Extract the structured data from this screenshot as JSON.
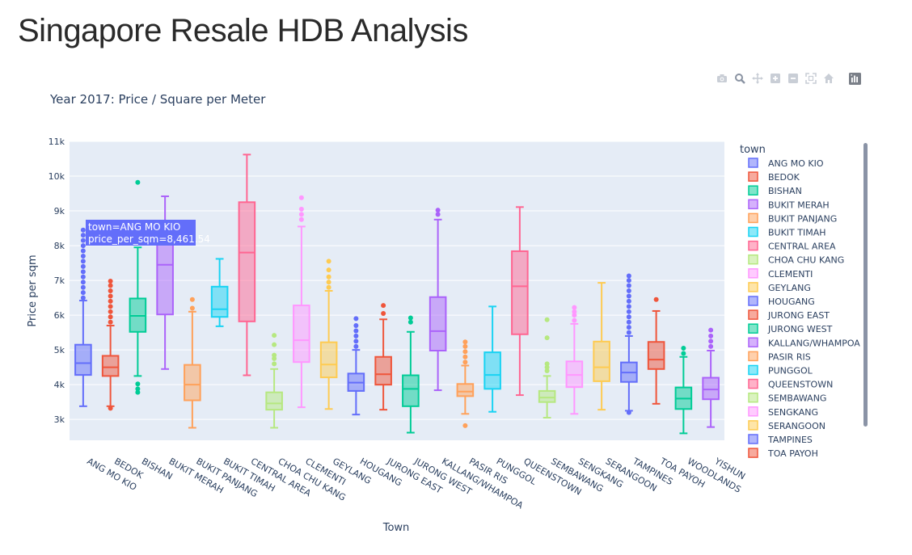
{
  "page": {
    "title": "Singapore Resale HDB Analysis"
  },
  "modebar": {
    "icons": [
      "camera-icon",
      "zoom-icon",
      "pan-icon",
      "zoom-in-icon",
      "zoom-out-icon",
      "autoscale-icon",
      "reset-axes-icon",
      "plotly-logo-icon"
    ]
  },
  "chart_data": {
    "type": "box",
    "title": "Year 2017: Price / Square per Meter",
    "xlabel": "Town",
    "ylabel": "Price per sqm",
    "ylim": [
      2400,
      11000
    ],
    "yticks": [
      3000,
      4000,
      5000,
      6000,
      7000,
      8000,
      9000,
      10000,
      11000
    ],
    "ytick_labels": [
      "3k",
      "4k",
      "5k",
      "6k",
      "7k",
      "8k",
      "9k",
      "10k",
      "11k"
    ],
    "grid": true,
    "legend_title": "town",
    "legend_position": "right",
    "hover": {
      "line1": "town=ANG MO KIO",
      "line2": "price_per_sqm=8,461.54"
    },
    "series": [
      {
        "name": "ANG MO KIO",
        "color": "#636efa",
        "min": 3380,
        "q1": 4280,
        "median": 4620,
        "q3": 5150,
        "max": 6420,
        "outliers": [
          6500,
          6650,
          6800,
          6950,
          7100,
          7250,
          7400,
          7550,
          7700,
          7850,
          8000,
          8150,
          8300,
          8450
        ]
      },
      {
        "name": "BEDOK",
        "color": "#ef553b",
        "min": 3380,
        "q1": 4250,
        "median": 4500,
        "q3": 4830,
        "max": 5700,
        "outliers": [
          3320,
          5800,
          5950,
          6100,
          6250,
          6400,
          6550,
          6700,
          6850,
          6980
        ]
      },
      {
        "name": "BISHAN",
        "color": "#00cc96",
        "min": 4250,
        "q1": 5520,
        "median": 5980,
        "q3": 6480,
        "max": 7950,
        "outliers": [
          3780,
          3880,
          4020,
          8100,
          8250,
          9820
        ]
      },
      {
        "name": "BUKIT MERAH",
        "color": "#ab63fa",
        "min": 4450,
        "q1": 6020,
        "median": 7450,
        "q3": 8400,
        "max": 9420,
        "outliers": []
      },
      {
        "name": "BUKIT PANJANG",
        "color": "#ffa15a",
        "min": 2760,
        "q1": 3550,
        "median": 4000,
        "q3": 4570,
        "max": 6100,
        "outliers": [
          6200,
          6450
        ]
      },
      {
        "name": "BUKIT TIMAH",
        "color": "#19d3f3",
        "min": 5680,
        "q1": 5950,
        "median": 6170,
        "q3": 6820,
        "max": 7620,
        "outliers": []
      },
      {
        "name": "CENTRAL AREA",
        "color": "#ff6692",
        "min": 4270,
        "q1": 5820,
        "median": 7800,
        "q3": 9250,
        "max": 10620,
        "outliers": []
      },
      {
        "name": "CHOA CHU KANG",
        "color": "#b6e880",
        "min": 2760,
        "q1": 3280,
        "median": 3460,
        "q3": 3780,
        "max": 4450,
        "outliers": [
          4600,
          4750,
          4850,
          5150,
          5420
        ]
      },
      {
        "name": "CLEMENTI",
        "color": "#ff97ff",
        "min": 3350,
        "q1": 4650,
        "median": 5280,
        "q3": 6280,
        "max": 8550,
        "outliers": [
          8750,
          8900,
          9050,
          9380
        ]
      },
      {
        "name": "GEYLANG",
        "color": "#fecb52",
        "min": 3300,
        "q1": 4210,
        "median": 4580,
        "q3": 5220,
        "max": 6700,
        "outliers": [
          6800,
          6950,
          7100,
          7300,
          7550
        ]
      },
      {
        "name": "HOUGANG",
        "color": "#636efa",
        "min": 3140,
        "q1": 3820,
        "median": 4060,
        "q3": 4320,
        "max": 5000,
        "outliers": [
          5100,
          5250,
          5400,
          5550,
          5700,
          5900
        ]
      },
      {
        "name": "JURONG EAST",
        "color": "#ef553b",
        "min": 3280,
        "q1": 4000,
        "median": 4300,
        "q3": 4800,
        "max": 5880,
        "outliers": [
          6050,
          6280
        ]
      },
      {
        "name": "JURONG WEST",
        "color": "#00cc96",
        "min": 2620,
        "q1": 3380,
        "median": 3880,
        "q3": 4270,
        "max": 5520,
        "outliers": [
          5800,
          5920
        ]
      },
      {
        "name": "KALLANG/WHAMPOA",
        "color": "#ab63fa",
        "min": 3840,
        "q1": 4980,
        "median": 5540,
        "q3": 6520,
        "max": 8750,
        "outliers": [
          8900,
          9020
        ]
      },
      {
        "name": "PASIR RIS",
        "color": "#ffa15a",
        "min": 3160,
        "q1": 3670,
        "median": 3800,
        "q3": 4020,
        "max": 4550,
        "outliers": [
          2820,
          4650,
          4800,
          4950,
          5100,
          5230
        ]
      },
      {
        "name": "PUNGGOL",
        "color": "#19d3f3",
        "min": 3220,
        "q1": 3880,
        "median": 4280,
        "q3": 4930,
        "max": 6250,
        "outliers": []
      },
      {
        "name": "QUEENSTOWN",
        "color": "#ff6692",
        "min": 3700,
        "q1": 5450,
        "median": 6830,
        "q3": 7840,
        "max": 9110,
        "outliers": []
      },
      {
        "name": "SEMBAWANG",
        "color": "#b6e880",
        "min": 3050,
        "q1": 3500,
        "median": 3630,
        "q3": 3820,
        "max": 4250,
        "outliers": [
          4400,
          4500,
          4600,
          5350,
          5870
        ]
      },
      {
        "name": "SENGKANG",
        "color": "#ff97ff",
        "min": 3160,
        "q1": 3930,
        "median": 4280,
        "q3": 4670,
        "max": 5750,
        "outliers": [
          5850,
          6000,
          6100,
          6220
        ]
      },
      {
        "name": "SERANGOON",
        "color": "#fecb52",
        "min": 3280,
        "q1": 4100,
        "median": 4500,
        "q3": 5240,
        "max": 6930,
        "outliers": []
      },
      {
        "name": "TAMPINES",
        "color": "#636efa",
        "min": 3250,
        "q1": 4080,
        "median": 4350,
        "q3": 4640,
        "max": 5400,
        "outliers": [
          3200,
          5500,
          5650,
          5800,
          5950,
          6100,
          6250,
          6400,
          6550,
          6700,
          6850,
          7000,
          7130
        ]
      },
      {
        "name": "TOA PAYOH",
        "color": "#ef553b",
        "min": 3450,
        "q1": 4450,
        "median": 4720,
        "q3": 5230,
        "max": 6120,
        "outliers": [
          6450
        ]
      },
      {
        "name": "WOODLANDS",
        "color": "#00cc96",
        "min": 2600,
        "q1": 3300,
        "median": 3600,
        "q3": 3920,
        "max": 4800,
        "outliers": [
          4900,
          5050
        ]
      },
      {
        "name": "YISHUN",
        "color": "#ab63fa",
        "min": 2780,
        "q1": 3580,
        "median": 3860,
        "q3": 4200,
        "max": 4980,
        "outliers": [
          5100,
          5250,
          5400,
          5570
        ]
      }
    ]
  }
}
